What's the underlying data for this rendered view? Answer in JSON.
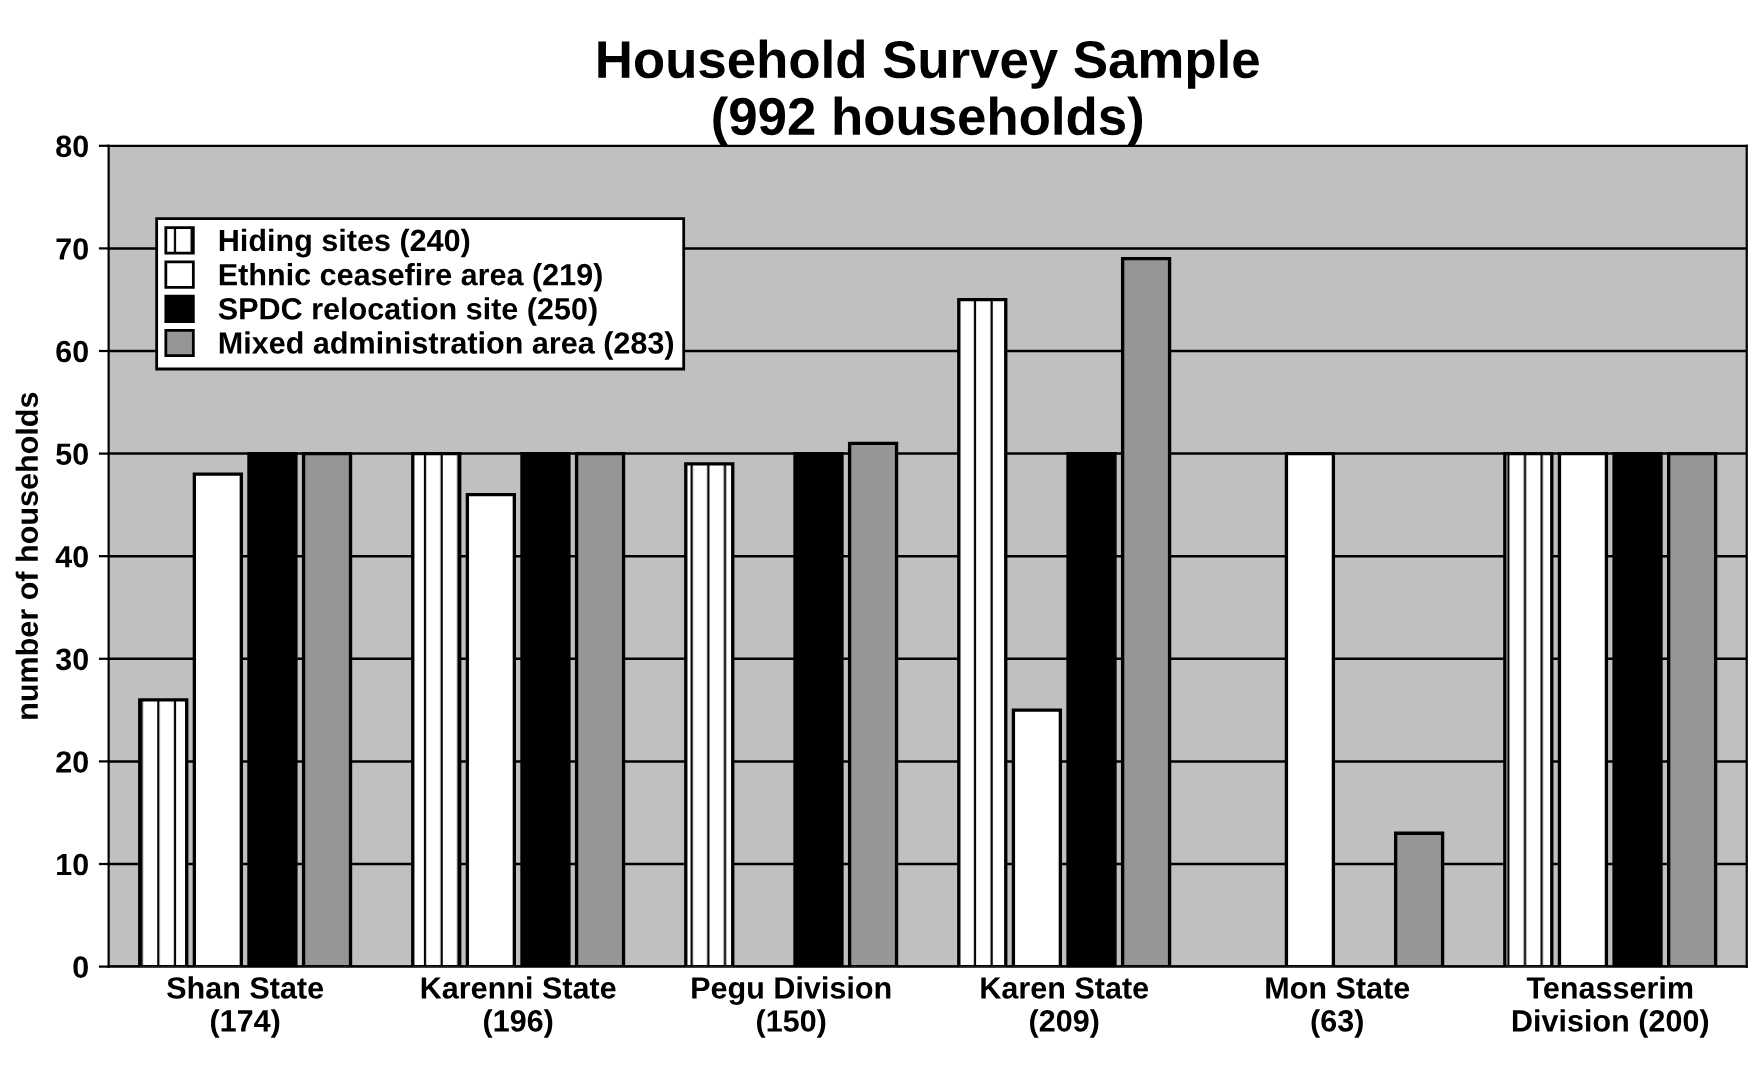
{
  "chart_data": {
    "type": "bar",
    "title": "Household Survey Sample\n(992 households)",
    "ylabel": "number of households",
    "categories": [
      "Shan State\n(174)",
      "Karenni State\n(196)",
      "Pegu Division\n(150)",
      "Karen State\n(209)",
      "Mon State\n(63)",
      "Tenasserim\nDivision (200)"
    ],
    "series": [
      {
        "name": "Hiding sites (240)",
        "color": "#ffffff",
        "values": [
          26,
          50,
          49,
          65,
          null,
          50
        ]
      },
      {
        "name": "Ethnic ceasefire area (219)",
        "color": "#ffffff",
        "values": [
          48,
          46,
          null,
          25,
          50,
          50
        ]
      },
      {
        "name": "SPDC relocation site (250)",
        "color": "#000000",
        "values": [
          50,
          50,
          50,
          50,
          null,
          50
        ]
      },
      {
        "name": "Mixed administration area (283)",
        "color": "#969696",
        "values": [
          50,
          50,
          51,
          69,
          13,
          50
        ]
      }
    ],
    "ylim": [
      0,
      80
    ],
    "yticks": [
      0,
      10,
      20,
      30,
      40,
      50,
      60,
      70,
      80
    ],
    "grid": "y",
    "legend": "top left"
  }
}
